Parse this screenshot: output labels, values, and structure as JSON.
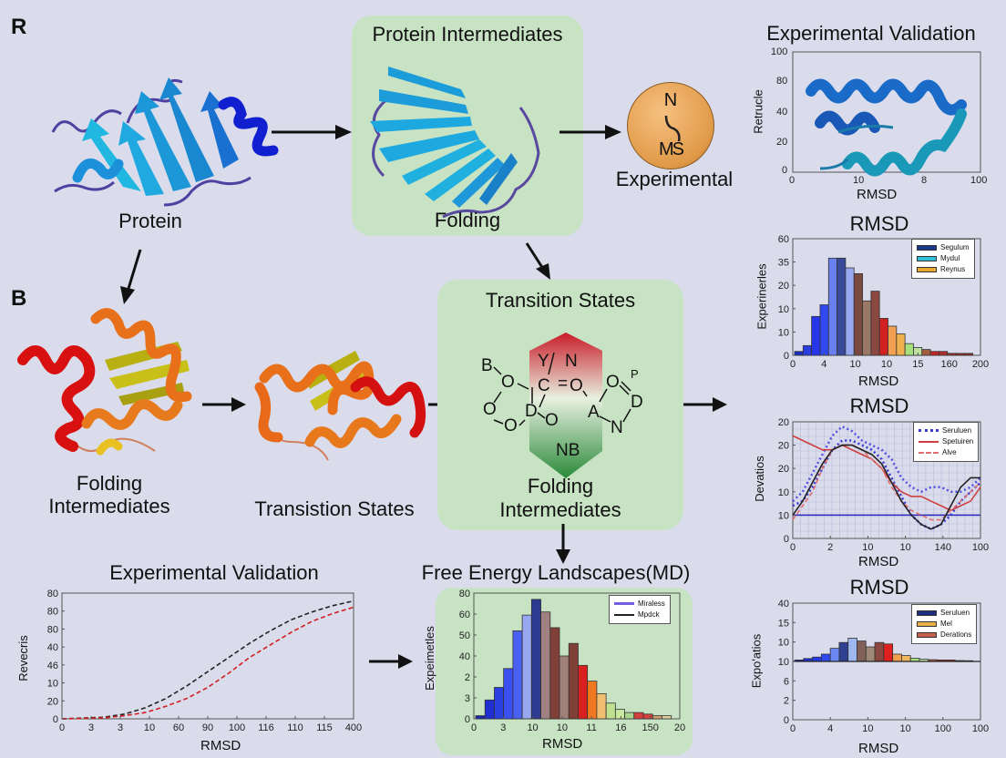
{
  "panels": {
    "R": {
      "letter": "R"
    },
    "B": {
      "letter": "B"
    }
  },
  "nodes": {
    "protein": {
      "label": "Protein"
    },
    "protein_intermediates": {
      "title": "Protein Intermediates",
      "caption": "Folding"
    },
    "ms_sphere": {
      "top": "N",
      "bottom": "MS",
      "caption": "Experimental"
    },
    "folding_intermediates": {
      "line1": "Folding",
      "line2": "Intermediates"
    },
    "transistion_states": {
      "label": "Transistion States"
    },
    "transition_box": {
      "title": "Transition States",
      "caption_line1": "Folding",
      "caption_line2": "Intermediates",
      "atoms": [
        "B",
        "O",
        "O",
        "O",
        "D",
        "O",
        "Y",
        "N",
        "C",
        "=",
        "O",
        "O",
        "P",
        "D",
        "A",
        "N",
        "NB"
      ]
    }
  },
  "colors": {
    "background": "#dadcec",
    "green_box": "#c8e3c4",
    "sphere": "#e8a050",
    "helix_red": "#d41010",
    "helix_orange": "#e8731a",
    "sheet_yellow": "#c8c018",
    "strand_blue": "#1e9ad6",
    "helix_blue": "#1020c8"
  },
  "chart_data": [
    {
      "id": "exp_validation_top",
      "type": "image-in-axes",
      "title": "Experimental Validation",
      "xlabel": "RMSD",
      "ylabel": "Retrucle",
      "x_ticks": [
        "0",
        "10",
        "8",
        "100"
      ],
      "y_ticks": [
        "0",
        "20",
        "40",
        "80",
        "100"
      ]
    },
    {
      "id": "rmsd_hist_1",
      "type": "bar",
      "title": "RMSD",
      "xlabel": "RMSD",
      "ylabel": "Experinerles",
      "x_ticks": [
        "0",
        "4",
        "10",
        "10",
        "15",
        "160",
        "200"
      ],
      "y_ticks": [
        "0",
        "10",
        "10",
        "20",
        "35",
        "60"
      ],
      "legend": [
        "Segulum",
        "Mydul",
        "Reynus"
      ],
      "legend_colors": [
        "#1c3a8a",
        "#30c0d8",
        "#e8a830"
      ],
      "values": [
        2,
        5,
        20,
        26,
        50,
        50,
        45,
        42,
        28,
        33,
        19,
        15,
        11,
        6,
        4,
        3,
        2,
        2,
        1,
        1,
        1
      ],
      "bar_colors": [
        "#1a2fc0",
        "#2a3ee0",
        "#2636e8",
        "#3048f0",
        "#6a80f0",
        "#3a4a9a",
        "#98a8f0",
        "#7a4a40",
        "#9a7868",
        "#8a4840",
        "#d02020",
        "#f0a050",
        "#f0b050",
        "#a8e080",
        "#c0e0a0",
        "#a06040",
        "#c02828",
        "#b03030",
        "#a83030",
        "#a03030",
        "#983030"
      ],
      "ylim": [
        0,
        60
      ]
    },
    {
      "id": "rmsd_line",
      "type": "line",
      "title": "RMSD",
      "xlabel": "RMSD",
      "ylabel": "Devatios",
      "x_ticks": [
        "0",
        "2",
        "10",
        "10",
        "140",
        "100"
      ],
      "y_ticks": [
        "0",
        "10",
        "10",
        "20",
        "20",
        "20"
      ],
      "legend": [
        "Seruluen",
        "Spetuiren",
        "Alve"
      ],
      "series": [
        {
          "name": "Seruluen",
          "color": "#3a3ad0",
          "style": "dotted",
          "y": [
            7,
            8,
            11,
            15,
            19,
            21,
            21,
            20,
            19,
            17,
            13,
            9,
            5,
            3,
            2,
            3,
            5,
            8,
            10,
            12
          ]
        },
        {
          "name": "Seruluen-upper",
          "color": "#5050e0",
          "style": "dotted",
          "y": [
            8,
            10,
            14,
            18,
            22,
            24,
            23,
            21,
            20,
            19,
            17,
            13,
            11,
            10,
            11,
            11,
            10,
            10,
            11,
            13
          ]
        },
        {
          "name": "Spetuiren",
          "color": "#d04040",
          "style": "solid",
          "y": [
            22,
            21,
            20,
            19,
            19,
            20,
            19,
            18,
            17,
            15,
            12,
            10,
            9,
            9,
            8,
            7,
            6,
            7,
            8,
            11
          ]
        },
        {
          "name": "Alve",
          "color": "#e07070",
          "style": "dashed",
          "y": [
            4,
            7,
            10,
            15,
            19,
            20,
            20,
            19,
            17,
            15,
            11,
            8,
            6,
            5,
            4,
            4,
            6,
            8,
            10,
            12
          ]
        },
        {
          "name": "black",
          "color": "#222",
          "style": "solid",
          "y": [
            5,
            8,
            12,
            16,
            19,
            20,
            20,
            19,
            18,
            16,
            12,
            8,
            5,
            3,
            2,
            3,
            7,
            11,
            13,
            13
          ]
        }
      ],
      "hline": 5,
      "ylim": [
        0,
        25
      ]
    },
    {
      "id": "rmsd_hist_2",
      "type": "bar",
      "title": "RMSD",
      "xlabel": "RMSD",
      "ylabel": "Expo'atios",
      "x_ticks": [
        "0",
        "4",
        "10",
        "10",
        "100",
        "100"
      ],
      "y_ticks": [
        "0",
        "2",
        "6",
        "10",
        "10",
        "15",
        "40"
      ],
      "legend": [
        "Seruluen",
        "Mel",
        "Derations"
      ],
      "legend_colors": [
        "#1c2f80",
        "#e8b048",
        "#c86050"
      ],
      "values": [
        1,
        2,
        3,
        5,
        9,
        13,
        16,
        14,
        10,
        13,
        12,
        5,
        4,
        2.2,
        1.5,
        1.2,
        1.0,
        1.0,
        0.6,
        0.5
      ],
      "bar_colors": [
        "#1a28c0",
        "#2030d8",
        "#2438e8",
        "#3048f0",
        "#6a88f0",
        "#304090",
        "#a0b8f0",
        "#806058",
        "#a08878",
        "#8a4840",
        "#e02020",
        "#f0a050",
        "#f0b860",
        "#a8e080",
        "#c8e8a0",
        "#c06048",
        "#c03030",
        "#c03030",
        "#703030",
        "#703030"
      ],
      "baseline": 6,
      "ylim": [
        0,
        40
      ]
    },
    {
      "id": "exp_validation_bottom",
      "type": "line",
      "title": "Experimental Validation",
      "xlabel": "RMSD",
      "ylabel": "Revecris",
      "x_ticks": [
        "0",
        "3",
        "3",
        "10",
        "60",
        "90",
        "100",
        "116",
        "110",
        "115",
        "400"
      ],
      "y_ticks": [
        "0",
        "20",
        "10",
        "46",
        "40",
        "80",
        "80",
        "80"
      ],
      "series": [
        {
          "name": "black-dashed",
          "color": "#222",
          "y": [
            0,
            0.5,
            1,
            3,
            7,
            13,
            21,
            30,
            39,
            48,
            56,
            63,
            68,
            72,
            75
          ]
        },
        {
          "name": "red-dashed",
          "color": "#d02020",
          "y": [
            0,
            0.3,
            0.6,
            2,
            4,
            8,
            13,
            20,
            29,
            39,
            47,
            55,
            62,
            67,
            71
          ]
        }
      ],
      "ylim": [
        0,
        80
      ]
    },
    {
      "id": "free_energy_hist",
      "type": "bar",
      "title": "Free Energy Landscapes(MD)",
      "xlabel": "RMSD",
      "ylabel": "Expeimetles",
      "x_ticks": [
        "0",
        "3",
        "10",
        "10",
        "11",
        "16",
        "150",
        "20"
      ],
      "y_ticks": [
        "0",
        "3",
        "2",
        "40",
        "50",
        "60",
        "80"
      ],
      "legend": [
        "Miraless",
        "Mpdck"
      ],
      "values": [
        1,
        6,
        10,
        16,
        28,
        33,
        38,
        34,
        29,
        20,
        24,
        17,
        12,
        8,
        5,
        3,
        2,
        2,
        1.5,
        1,
        1
      ],
      "bar_colors": [
        "#1a28b0",
        "#2030d0",
        "#2a40e0",
        "#3a50f0",
        "#4a60f0",
        "#98a8f0",
        "#2c3a90",
        "#a08080",
        "#804038",
        "#a08078",
        "#804038",
        "#d82020",
        "#f07820",
        "#f0c070",
        "#c0e090",
        "#c8e8a0",
        "#a8d890",
        "#d84040",
        "#d84040",
        "#d0a070",
        "#e0d0a0"
      ],
      "ylim": [
        0,
        40
      ]
    }
  ]
}
